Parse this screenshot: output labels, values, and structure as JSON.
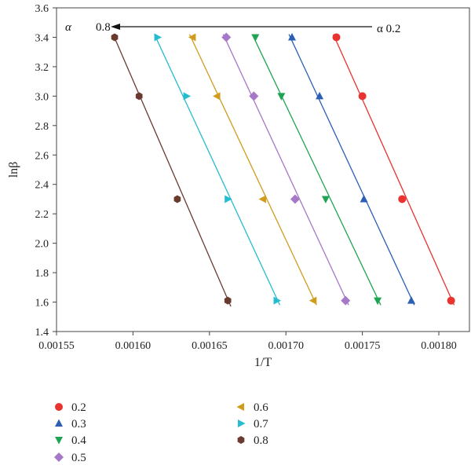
{
  "chart_data": {
    "type": "scatter",
    "xlabel": "1/T",
    "ylabel": "lnβ",
    "xlim": [
      0.00155,
      0.00182
    ],
    "ylim": [
      1.4,
      3.6
    ],
    "xticks": [
      "0.00155",
      "0.00160",
      "0.00165",
      "0.00170",
      "0.00175",
      "0.00180"
    ],
    "xtick_values": [
      0.00155,
      0.0016,
      0.00165,
      0.0017,
      0.00175,
      0.0018
    ],
    "yticks": [
      "1.4",
      "1.6",
      "1.8",
      "2.0",
      "2.2",
      "2.4",
      "2.6",
      "2.8",
      "3.0",
      "3.2",
      "3.4",
      "3.6"
    ],
    "ytick_values": [
      1.4,
      1.6,
      1.8,
      2.0,
      2.2,
      2.4,
      2.6,
      2.8,
      3.0,
      3.2,
      3.4,
      3.6
    ],
    "grid": false,
    "legend_position": "bottom",
    "series": [
      {
        "name": "0.2",
        "color": "#e8332f",
        "marker": "circle",
        "x": [
          0.001733,
          0.00175,
          0.001776,
          0.001808
        ],
        "y": [
          3.4,
          3.0,
          2.3,
          1.61
        ],
        "fit_x": [
          0.001731,
          0.00181
        ],
        "fit_y": [
          3.42,
          1.58
        ]
      },
      {
        "name": "0.3",
        "color": "#2b5fb4",
        "marker": "triangle-up",
        "x": [
          0.001704,
          0.001722,
          0.001751,
          0.001782
        ],
        "y": [
          3.4,
          3.0,
          2.3,
          1.61
        ],
        "fit_x": [
          0.001702,
          0.001784
        ],
        "fit_y": [
          3.42,
          1.58
        ]
      },
      {
        "name": "0.4",
        "color": "#1fa454",
        "marker": "triangle-down",
        "x": [
          0.00168,
          0.001697,
          0.001726,
          0.00176
        ],
        "y": [
          3.4,
          3.0,
          2.3,
          1.61
        ],
        "fit_x": [
          0.001678,
          0.001762
        ],
        "fit_y": [
          3.42,
          1.58
        ]
      },
      {
        "name": "0.5",
        "color": "#a678c8",
        "marker": "diamond",
        "x": [
          0.001661,
          0.001679,
          0.001706,
          0.001739
        ],
        "y": [
          3.4,
          3.0,
          2.3,
          1.61
        ],
        "fit_x": [
          0.001659,
          0.001741
        ],
        "fit_y": [
          3.42,
          1.58
        ]
      },
      {
        "name": "0.6",
        "color": "#d19b1c",
        "marker": "triangle-left",
        "x": [
          0.001639,
          0.001655,
          0.001685,
          0.001718
        ],
        "y": [
          3.4,
          3.0,
          2.3,
          1.61
        ],
        "fit_x": [
          0.001637,
          0.00172
        ],
        "fit_y": [
          3.42,
          1.58
        ]
      },
      {
        "name": "0.7",
        "color": "#26bcd0",
        "marker": "triangle-right",
        "x": [
          0.001616,
          0.001635,
          0.001662,
          0.001694
        ],
        "y": [
          3.4,
          3.0,
          2.3,
          1.61
        ],
        "fit_x": [
          0.001614,
          0.001696
        ],
        "fit_y": [
          3.42,
          1.58
        ]
      },
      {
        "name": "0.8",
        "color": "#6b3a2f",
        "marker": "hexagon",
        "x": [
          0.001588,
          0.001604,
          0.001629,
          0.001662
        ],
        "y": [
          3.4,
          3.0,
          2.3,
          1.61
        ],
        "fit_x": [
          0.001587,
          0.001664
        ],
        "fit_y": [
          3.42,
          1.57
        ]
      }
    ],
    "annotations": {
      "alpha_left": "α",
      "arrow_end_label": "0.8",
      "arrow_start_label": "α 0.2"
    }
  }
}
